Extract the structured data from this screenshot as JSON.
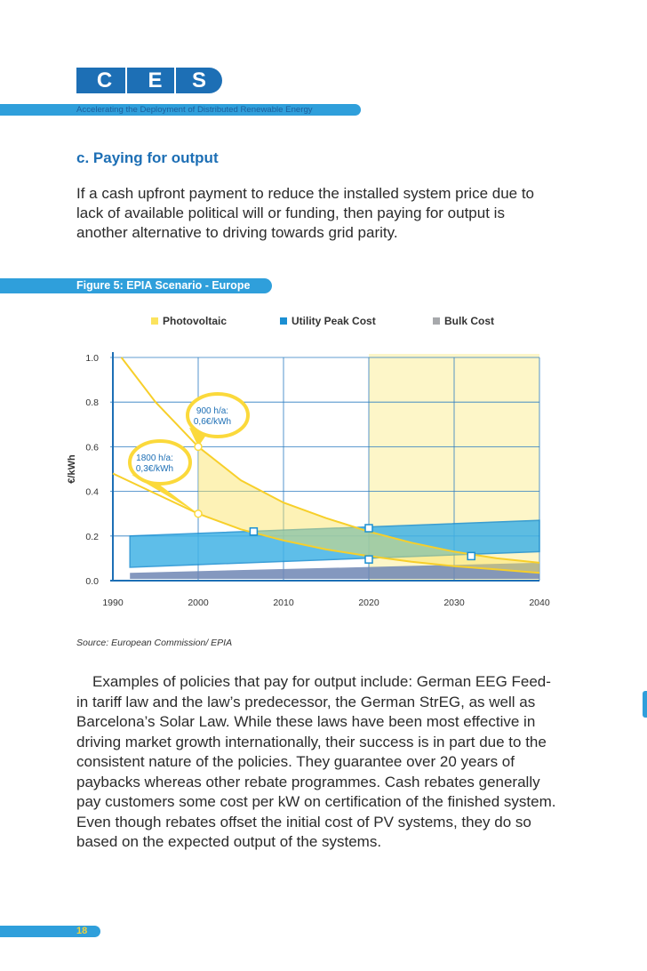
{
  "logo": {
    "letters": [
      "C",
      "E",
      "S"
    ],
    "tagline": "Accelerating the Deployment of Distributed Renewable Energy"
  },
  "section": {
    "heading": "c. Paying for output",
    "intro": "If a cash upfront payment to reduce the installed system price due to lack of available political will or funding, then paying for output is another alternative to driving towards grid parity."
  },
  "figure": {
    "title": "Figure 5: EPIA Scenario - Europe",
    "source": "Source: European Commission/ EPIA"
  },
  "chart_data": {
    "type": "line",
    "title": "Figure 5: EPIA Scenario - Europe",
    "ylabel": "€/kWh",
    "xlabel": "",
    "xlim": [
      1990,
      2040
    ],
    "ylim": [
      0.0,
      1.0
    ],
    "x_ticks": [
      "1990",
      "2000",
      "2010",
      "2020",
      "2030",
      "2040"
    ],
    "y_ticks": [
      "0.0",
      "0.2",
      "0.4",
      "0.6",
      "0.8",
      "1.0"
    ],
    "legend": [
      {
        "name": "Photovoltaic",
        "color": "#fbe35d"
      },
      {
        "name": "Utility Peak Cost",
        "color": "#1b8fd2"
      },
      {
        "name": "Bulk Cost",
        "color": "#a7a9ac"
      }
    ],
    "shaded_period": [
      2020,
      2040
    ],
    "series": [
      {
        "name": "Photovoltaic 900 h/a",
        "x": [
          1991,
          1995,
          2000,
          2005,
          2010,
          2015,
          2020,
          2025,
          2030,
          2035,
          2040
        ],
        "y": [
          1.0,
          0.8,
          0.6,
          0.45,
          0.35,
          0.28,
          0.22,
          0.17,
          0.13,
          0.1,
          0.08
        ]
      },
      {
        "name": "Photovoltaic 1800 h/a",
        "x": [
          1990,
          1995,
          2000,
          2005,
          2010,
          2015,
          2020,
          2025,
          2030,
          2035,
          2040
        ],
        "y": [
          0.48,
          0.39,
          0.3,
          0.23,
          0.18,
          0.14,
          0.11,
          0.085,
          0.065,
          0.05,
          0.035
        ]
      },
      {
        "name": "Utility Peak Cost upper",
        "x": [
          1992,
          2040
        ],
        "y": [
          0.2,
          0.27
        ]
      },
      {
        "name": "Utility Peak Cost lower",
        "x": [
          1992,
          2040
        ],
        "y": [
          0.06,
          0.13
        ]
      },
      {
        "name": "Bulk Cost upper",
        "x": [
          1992,
          2040
        ],
        "y": [
          0.035,
          0.08
        ]
      },
      {
        "name": "Bulk Cost lower",
        "x": [
          1992,
          2040
        ],
        "y": [
          0.0,
          0.0
        ]
      }
    ],
    "callouts": [
      {
        "text_line1": "900 h/a:",
        "text_line2": "0,6€/kWh",
        "x": 2000,
        "y": 0.6
      },
      {
        "text_line1": "1800 h/a:",
        "text_line2": "0,3€/kWh",
        "x": 2000,
        "y": 0.3
      }
    ],
    "markers": [
      {
        "x": 2006.5,
        "y": 0.22
      },
      {
        "x": 2020,
        "y": 0.235
      },
      {
        "x": 2020,
        "y": 0.095
      },
      {
        "x": 2032,
        "y": 0.11
      }
    ]
  },
  "body": {
    "paragraph": "Examples of policies that pay for output include: German EEG Feed-in tariff law and the law’s predecessor, the German StrEG, as well as Barcelona’s Solar Law. While these laws have been most effective in driving market growth internationally, their success is in part due to the consistent nature of the policies. They guarantee over 20 years of paybacks whereas other rebate programmes. Cash rebates generally pay customers some cost per kW on certification of the finished system. Even though rebates offset the initial cost of PV systems, they do so based on the expected output of the systems."
  },
  "page": {
    "number": "18"
  },
  "colors": {
    "brand_blue": "#1d6fb5",
    "accent_blue": "#2f9fdb",
    "pv_yellow": "#fbe35d",
    "shade_yellow": "#fdf6c8"
  }
}
